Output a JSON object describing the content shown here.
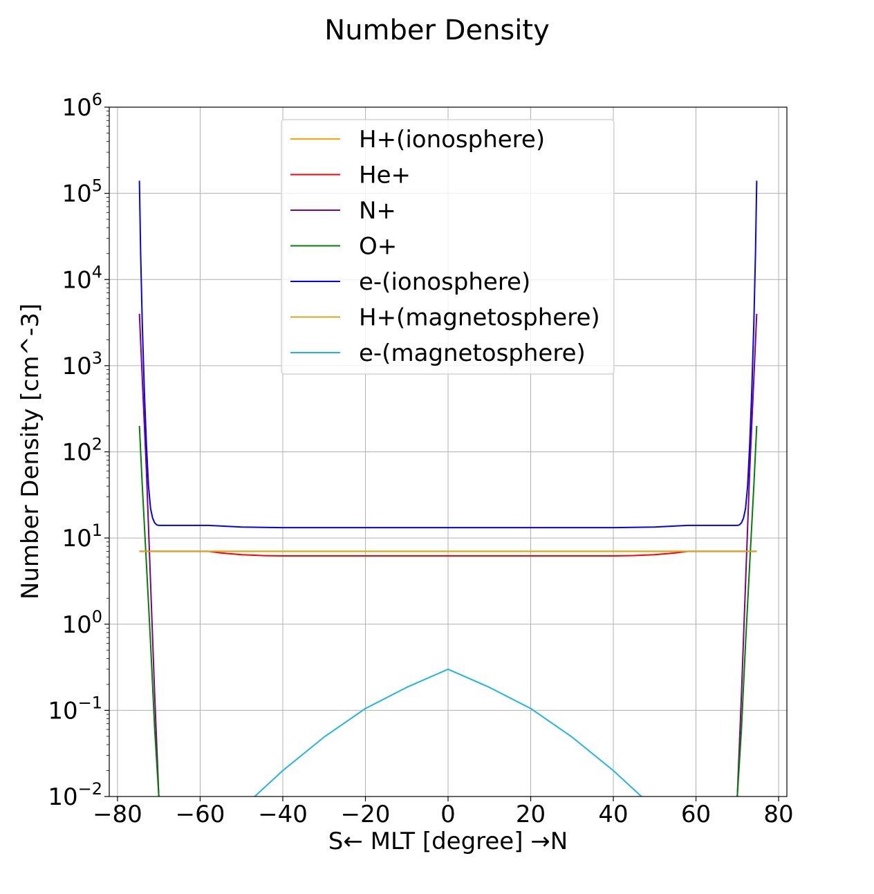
{
  "chart_data": {
    "type": "line",
    "title": "Number Density",
    "xlabel": "S← MLT [degree] →N",
    "ylabel": "Number Density [cm^-3]",
    "xlim": [
      -82,
      82
    ],
    "ylim": [
      0.01,
      1000000
    ],
    "yscale": "log",
    "grid": true,
    "legend_position": "upper-center",
    "x_ticks": [
      -80,
      -60,
      -40,
      -20,
      0,
      20,
      40,
      60,
      80
    ],
    "x_tick_labels": [
      "−80",
      "−60",
      "−40",
      "−20",
      "0",
      "20",
      "40",
      "60",
      "80"
    ],
    "y_ticks": [
      {
        "value": 0.01,
        "base": "10",
        "exp": "−2"
      },
      {
        "value": 0.1,
        "base": "10",
        "exp": "−1"
      },
      {
        "value": 1,
        "base": "10",
        "exp": "0"
      },
      {
        "value": 10,
        "base": "10",
        "exp": "1"
      },
      {
        "value": 100,
        "base": "10",
        "exp": "2"
      },
      {
        "value": 1000,
        "base": "10",
        "exp": "3"
      },
      {
        "value": 10000,
        "base": "10",
        "exp": "4"
      },
      {
        "value": 100000,
        "base": "10",
        "exp": "5"
      },
      {
        "value": 1000000,
        "base": "10",
        "exp": "6"
      }
    ],
    "series": [
      {
        "name": "H+(ionosphere)",
        "color": "#ffa500",
        "x": [
          -74.7,
          74.7
        ],
        "y": [
          7.0,
          7.0
        ]
      },
      {
        "name": "He+",
        "color": "#ff0000",
        "x": [
          -74.7,
          -58,
          -55,
          -50,
          -45,
          -40,
          -20,
          0,
          20,
          40,
          45,
          50,
          55,
          58,
          74.7
        ],
        "y": [
          7.0,
          7.0,
          6.7,
          6.4,
          6.25,
          6.2,
          6.2,
          6.2,
          6.2,
          6.2,
          6.25,
          6.4,
          6.7,
          7.0,
          7.0
        ]
      },
      {
        "name": "N+",
        "color": "#800080",
        "x": [
          -74.7,
          -74,
          -73,
          -72,
          -71,
          -70,
          -69.8,
          69.8,
          70,
          71,
          72,
          73,
          74,
          74.7
        ],
        "y": [
          4000,
          700,
          60,
          3,
          0.15,
          0.01,
          0.008,
          0.008,
          0.01,
          0.15,
          3,
          60,
          700,
          4000
        ]
      },
      {
        "name": "O+",
        "color": "#008000",
        "x": [
          -74.7,
          -74,
          -73,
          -72,
          -71,
          -70,
          -69.8,
          69.8,
          70,
          71,
          72,
          73,
          74,
          74.7
        ],
        "y": [
          200,
          40,
          5,
          0.6,
          0.06,
          0.01,
          0.008,
          0.008,
          0.01,
          0.06,
          0.6,
          5,
          40,
          200
        ]
      },
      {
        "name": "e-(ionosphere)",
        "color": "#0000ff",
        "x": [
          -74.7,
          -74.4,
          -74,
          -73.5,
          -73,
          -72.5,
          -72,
          -71.5,
          -71,
          -70.5,
          -70,
          -69,
          -66,
          -60,
          -58,
          -50,
          -40,
          0,
          40,
          50,
          58,
          60,
          66,
          69,
          70,
          70.5,
          71,
          71.5,
          72,
          72.5,
          73,
          73.5,
          74,
          74.4,
          74.7
        ],
        "y": [
          140000,
          20000,
          3000,
          500,
          120,
          40,
          22,
          17,
          15,
          14.2,
          14,
          14,
          14,
          14,
          14,
          13.4,
          13.2,
          13.2,
          13.2,
          13.4,
          14,
          14,
          14,
          14,
          14,
          14.2,
          15,
          17,
          22,
          40,
          120,
          500,
          3000,
          20000,
          140000
        ]
      },
      {
        "name": "H+(magnetosphere)",
        "color": "#daa520",
        "x": [
          -74.7,
          74.7
        ],
        "y": [
          7.0,
          7.0
        ]
      },
      {
        "name": "e-(magnetosphere)",
        "color": "#1eb4e6",
        "x": [
          -47,
          -40,
          -30,
          -20,
          -10,
          0,
          10,
          20,
          30,
          40,
          47
        ],
        "y": [
          0.0098,
          0.02,
          0.049,
          0.105,
          0.185,
          0.3,
          0.185,
          0.105,
          0.049,
          0.02,
          0.0098
        ]
      }
    ]
  }
}
